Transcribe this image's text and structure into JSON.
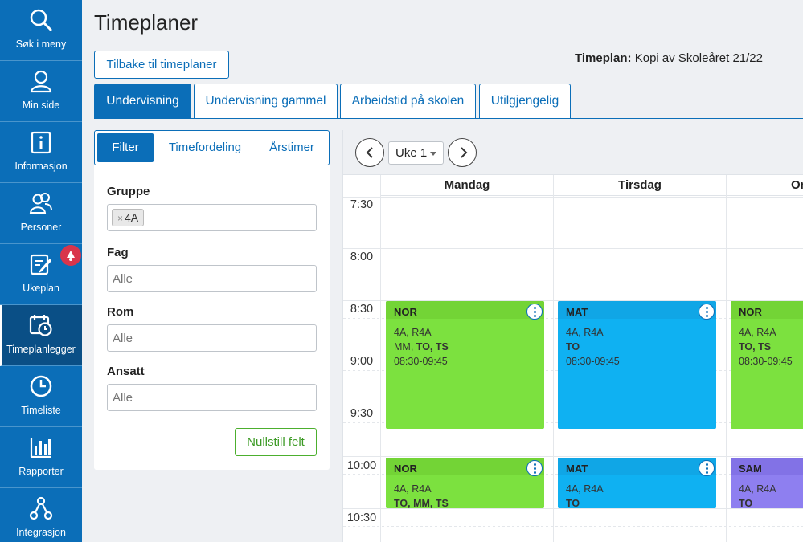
{
  "sidebar": {
    "items": [
      {
        "label": "Søk i meny",
        "icon": "search-icon"
      },
      {
        "label": "Min side",
        "icon": "user-icon"
      },
      {
        "label": "Informasjon",
        "icon": "info-icon"
      },
      {
        "label": "Personer",
        "icon": "people-icon"
      },
      {
        "label": "Ukeplan",
        "icon": "edit-icon"
      },
      {
        "label": "Timeplanlegger",
        "icon": "calendar-clock-icon"
      },
      {
        "label": "Timeliste",
        "icon": "clock-icon"
      },
      {
        "label": "Rapporter",
        "icon": "bar-chart-icon"
      },
      {
        "label": "Integrasjon",
        "icon": "network-icon"
      }
    ],
    "active": "Timeplanlegger"
  },
  "header": {
    "title": "Timeplaner",
    "back_button": "Tilbake til timeplaner",
    "plan_label": "Timeplan:",
    "plan_value": "Kopi av Skoleåret 21/22"
  },
  "tabs": [
    {
      "label": "Undervisning",
      "active": true
    },
    {
      "label": "Undervisning gammel",
      "active": false
    },
    {
      "label": "Arbeidstid på skolen",
      "active": false
    },
    {
      "label": "Utilgjengelig",
      "active": false
    }
  ],
  "filter": {
    "subtabs": [
      "Filter",
      "Timefordeling",
      "Årstimer"
    ],
    "fields": [
      {
        "label": "Gruppe",
        "placeholder": "",
        "chips": [
          "4A"
        ]
      },
      {
        "label": "Fag",
        "placeholder": "Alle"
      },
      {
        "label": "Rom",
        "placeholder": "Alle"
      },
      {
        "label": "Ansatt",
        "placeholder": "Alle"
      }
    ],
    "reset_button": "Nullstill felt"
  },
  "calendar": {
    "week": "Uke 1",
    "days": [
      "Mandag",
      "Tirsdag",
      "On"
    ],
    "times": [
      "7:30",
      "8:00",
      "8:30",
      "9:00",
      "9:30",
      "10:00",
      "10:30"
    ],
    "lessons": [
      {
        "subject": "NOR",
        "groups": "4A, R4A",
        "teachers_plain": "MM, ",
        "teachers_bold": "TO, TS",
        "time": "08:30-09:45",
        "color": "#7ce13f"
      },
      {
        "subject": "MAT",
        "groups": "4A, R4A",
        "teachers_plain": "",
        "teachers_bold": "TO",
        "time": "08:30-09:45",
        "color": "#0fb1f2"
      },
      {
        "subject": "NOR",
        "groups": "4A, R4A",
        "teachers_plain": "",
        "teachers_bold": "TO, TS",
        "time": "08:30-09:45",
        "color": "#7ce13f"
      },
      {
        "subject": "NOR",
        "groups": "4A, R4A",
        "teachers_plain": "",
        "teachers_bold": "TO, MM, TS",
        "time": "",
        "color": "#7ce13f"
      },
      {
        "subject": "MAT",
        "groups": "4A, R4A",
        "teachers_plain": "",
        "teachers_bold": "TO",
        "time": "",
        "color": "#0fb1f2"
      },
      {
        "subject": "SAM",
        "groups": "4A, R4A",
        "teachers_plain": "",
        "teachers_bold": "TO",
        "time": "",
        "color": "#8e7ff0"
      }
    ]
  },
  "colors": {
    "primary": "#0b6eb8",
    "nav_active": "#0a4f86",
    "success": "#4caf2e",
    "badge": "#d9354b"
  }
}
